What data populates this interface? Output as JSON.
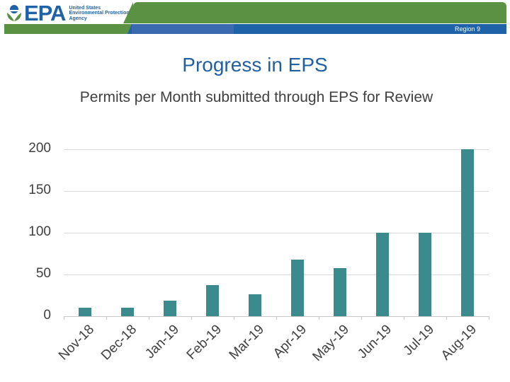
{
  "header": {
    "logo_text": "EPA",
    "agency_lines": [
      "United States",
      "Environmental Protection",
      "Agency"
    ],
    "region_label": "Region 9",
    "colors": {
      "green": "#5b9142",
      "blue": "#1f62a8"
    }
  },
  "slide": {
    "title": "Progress in EPS",
    "subtitle": "Permits per Month submitted through EPS for Review"
  },
  "chart_data": {
    "type": "bar",
    "title": "Permits per Month submitted through EPS for Review",
    "categories": [
      "Nov-18",
      "Dec-18",
      "Jan-19",
      "Feb-19",
      "Mar-19",
      "Apr-19",
      "May-19",
      "Jun-19",
      "Jul-19",
      "Aug-19"
    ],
    "values": [
      10,
      10,
      19,
      37,
      26,
      68,
      58,
      100,
      100,
      200
    ],
    "xlabel": "",
    "ylabel": "",
    "ylim": [
      0,
      200
    ],
    "yticks": [
      "0",
      "50",
      "100",
      "150",
      "200"
    ],
    "grid": true,
    "legend": null,
    "bar_color": "#3a8a8e"
  }
}
